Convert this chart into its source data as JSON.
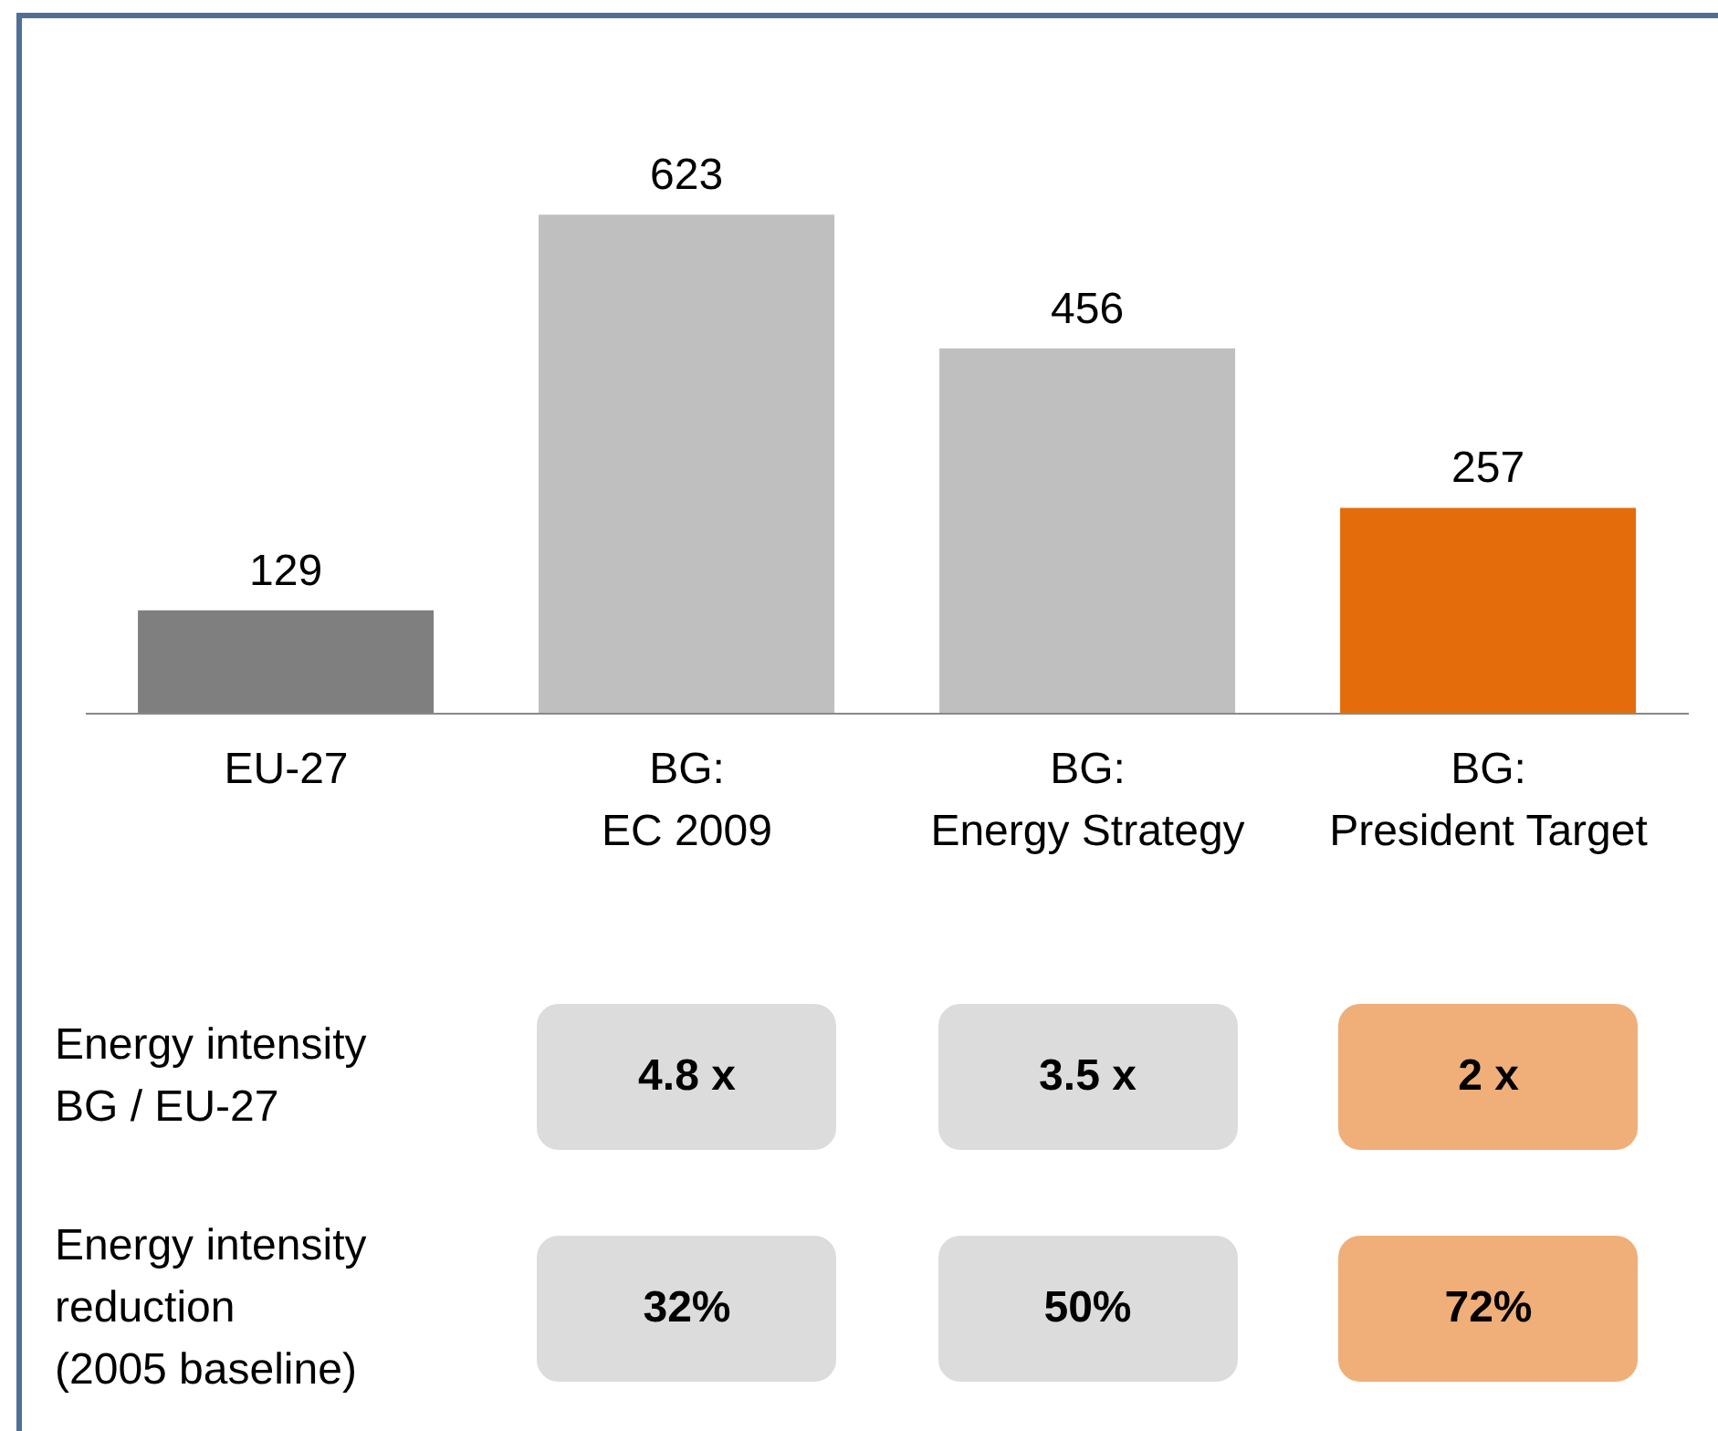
{
  "chart_data": {
    "type": "bar",
    "categories": [
      "EU-27",
      "BG:\nEC 2009",
      "BG:\nEnergy Strategy",
      "BG:\nPresident Target"
    ],
    "values": [
      129,
      623,
      456,
      257
    ],
    "colors": [
      "#7f7f7f",
      "#bfbfbf",
      "#bfbfbf",
      "#e46c0a"
    ],
    "data_labels": true,
    "annotations": [
      "Energy intensity\nBG / EU-27",
      "4.8 x",
      "3.5 x",
      "2 x",
      "Energy intensity\nreduction\n(2005 baseline)",
      "32%",
      "50%",
      "72%"
    ]
  }
}
